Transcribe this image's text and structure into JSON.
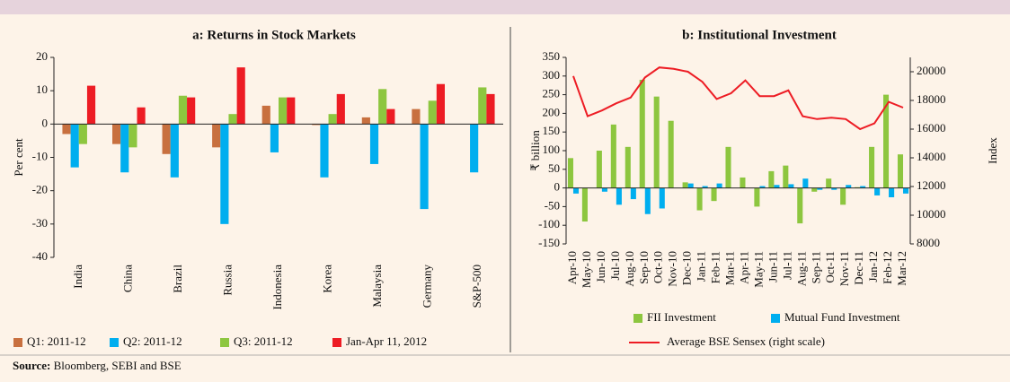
{
  "chart_data": [
    {
      "type": "bar",
      "title": "a: Returns in Stock Markets",
      "y_label": "Per cent",
      "categories": [
        "India",
        "China",
        "Brazil",
        "Russia",
        "Indonesia",
        "Korea",
        "Malaysia",
        "Germany",
        "S&P-500"
      ],
      "series": [
        {
          "name": "Q1: 2011-12",
          "color": "#c8703f",
          "values": [
            -3,
            -6,
            -9,
            -7,
            5.5,
            -0.3,
            2,
            4.5,
            0
          ]
        },
        {
          "name": "Q2: 2011-12",
          "color": "#00aeef",
          "values": [
            -13,
            -14.5,
            -16,
            -30,
            -8.5,
            -16,
            -12,
            -25.5,
            -14.5
          ]
        },
        {
          "name": "Q3: 2011-12",
          "color": "#8dc63f",
          "values": [
            -6,
            -7,
            8.5,
            3,
            8,
            3,
            10.5,
            7,
            11
          ]
        },
        {
          "name": "Jan-Apr 11, 2012",
          "color": "#ed1c24",
          "values": [
            11.5,
            5,
            8,
            17,
            8,
            9,
            4.5,
            12,
            9
          ]
        }
      ],
      "ylim": [
        -40,
        20
      ],
      "yticks": [
        -40,
        -30,
        -20,
        -10,
        0,
        10,
        20
      ]
    },
    {
      "type": "combo",
      "title": "b: Institutional Investment",
      "y_label": "₹ billion",
      "y2_label": "Index",
      "categories": [
        "Apr-10",
        "May-10",
        "Jun-10",
        "Jul-10",
        "Aug-10",
        "Sep-10",
        "Oct-10",
        "Nov-10",
        "Dec-10",
        "Jan-11",
        "Feb-11",
        "Mar-11",
        "Apr-11",
        "May-11",
        "Jun-11",
        "Jul-11",
        "Aug-11",
        "Sep-11",
        "Oct-11",
        "Nov-11",
        "Dec-11",
        "Jan-12",
        "Feb-12",
        "Mar-12"
      ],
      "series": [
        {
          "name": "FII Investment",
          "type": "bar",
          "color": "#8dc63f",
          "values": [
            80,
            -90,
            100,
            170,
            110,
            290,
            245,
            180,
            15,
            -60,
            -35,
            110,
            28,
            -50,
            45,
            60,
            -95,
            -10,
            25,
            -45,
            2,
            110,
            250,
            90
          ]
        },
        {
          "name": "Mutual Fund Investment",
          "type": "bar",
          "color": "#00aeef",
          "values": [
            -15,
            0,
            -10,
            -45,
            -30,
            -70,
            -55,
            0,
            12,
            5,
            12,
            0,
            0,
            5,
            8,
            10,
            25,
            -5,
            -5,
            8,
            5,
            -20,
            -25,
            -15
          ]
        },
        {
          "name": "Average BSE Sensex (right scale)",
          "type": "line",
          "axis": "y2",
          "color": "#ed1c24",
          "values": [
            19700,
            16900,
            17300,
            17800,
            18200,
            19600,
            20300,
            20200,
            20000,
            19300,
            18100,
            18500,
            19400,
            18300,
            18300,
            18700,
            16900,
            16700,
            16800,
            16700,
            16000,
            16400,
            17900,
            17500
          ]
        }
      ],
      "ylim": [
        -150,
        350
      ],
      "yticks": [
        -150,
        -100,
        -50,
        0,
        50,
        100,
        150,
        200,
        250,
        300,
        350
      ],
      "y2lim": [
        8000,
        21000
      ],
      "y2ticks": [
        8000,
        10000,
        12000,
        14000,
        16000,
        18000,
        20000
      ]
    }
  ],
  "source": {
    "label": "Source:",
    "text": "Bloomberg, SEBI and BSE"
  }
}
